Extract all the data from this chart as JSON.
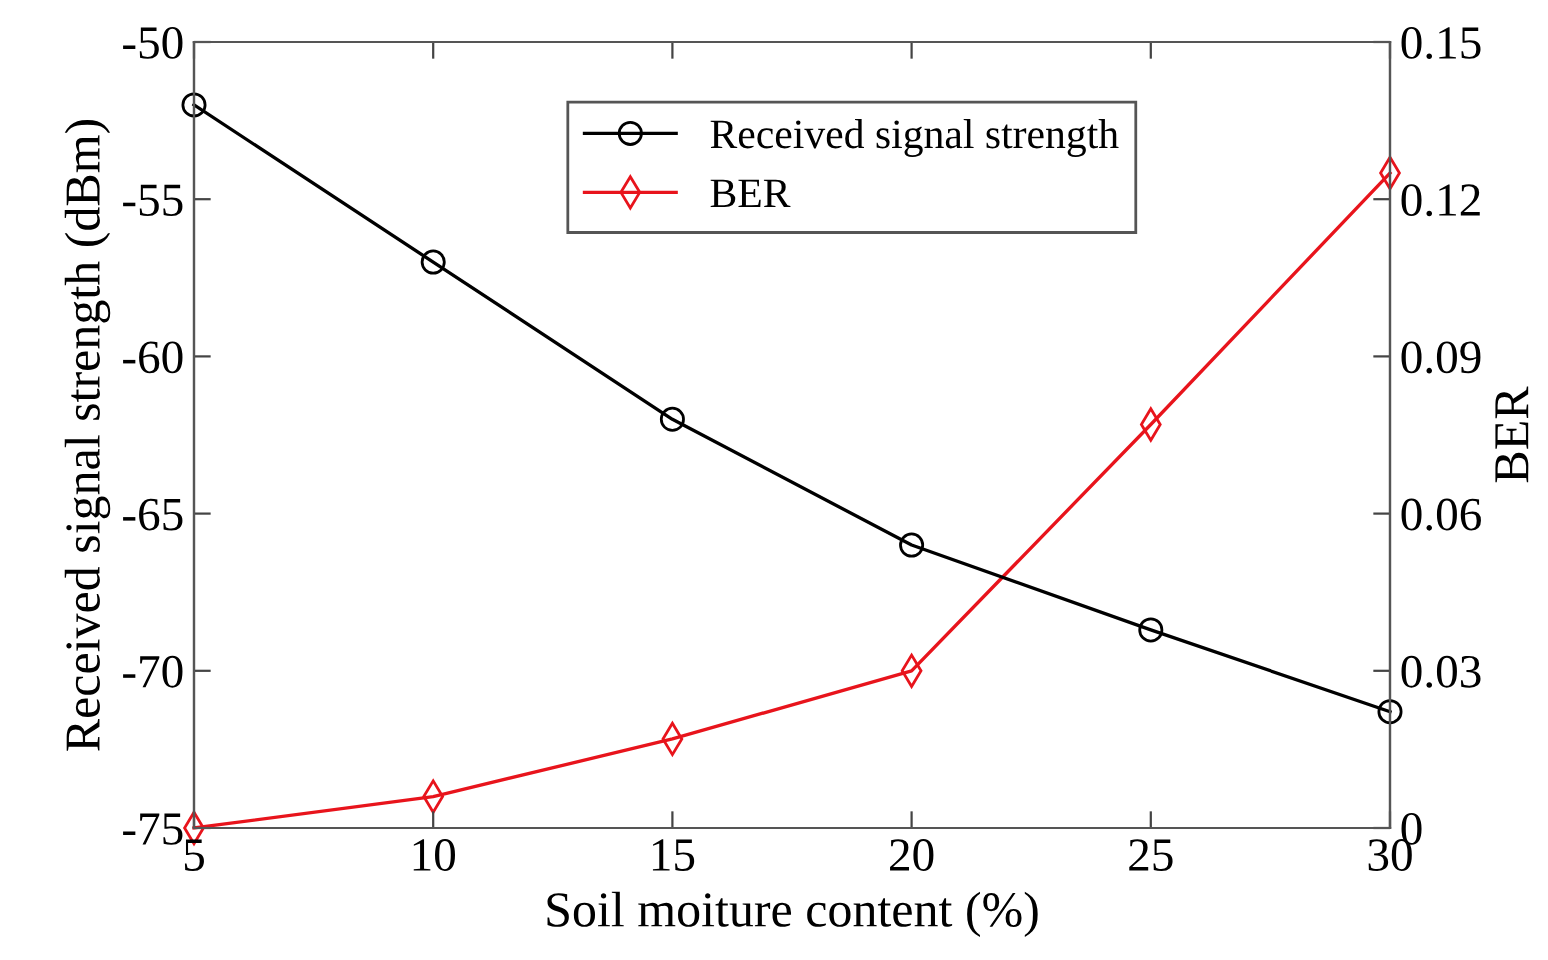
{
  "chart_data": {
    "type": "line",
    "xlabel": "Soil moiture content (%)",
    "ylabel": "Received signal strength (dBm)",
    "y2label": "BER",
    "x": [
      5,
      10,
      15,
      20,
      25,
      30
    ],
    "series": [
      {
        "name": "Received signal strength",
        "color": "#000000",
        "marker": "circle",
        "values": [
          -52.0,
          -57.0,
          -62.0,
          -66.0,
          -68.7,
          -71.3
        ]
      },
      {
        "name": "BER",
        "color": "#e8141c",
        "marker": "diamond",
        "axis": "y2",
        "values": [
          0.0,
          0.006,
          0.017,
          0.03,
          0.077,
          0.125
        ]
      }
    ],
    "xlim": [
      5,
      30
    ],
    "xticks": [
      5,
      10,
      15,
      20,
      25,
      30
    ],
    "ylim": [
      -75,
      -50
    ],
    "yticks": [
      -75,
      -70,
      -65,
      -60,
      -55,
      -50
    ],
    "y2lim": [
      0,
      0.15
    ],
    "y2ticks": [
      {
        "value": 0,
        "label": "0"
      },
      0.03,
      0.06,
      0.09,
      0.12,
      0.15
    ],
    "grid": false,
    "legend": "top",
    "line_style": "solid"
  }
}
